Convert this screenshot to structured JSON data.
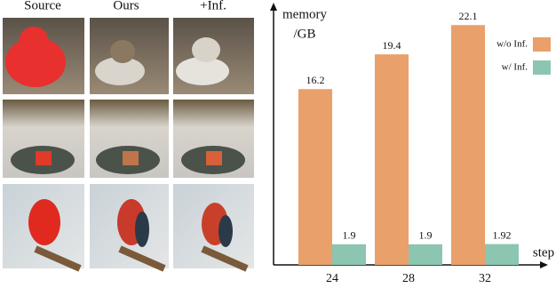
{
  "image_grid": {
    "column_labels": [
      "Source",
      "Ours",
      "+Inf."
    ]
  },
  "chart_data": {
    "type": "bar",
    "y_label_lines": [
      "memory",
      "/GB"
    ],
    "x_label": "step",
    "categories": [
      "24",
      "28",
      "32"
    ],
    "series": [
      {
        "name": "w/o Inf.",
        "color": "#e9a06b",
        "values": [
          16.2,
          19.4,
          22.1
        ]
      },
      {
        "name": "w/ Inf.",
        "color": "#8cc5b0",
        "values": [
          1.9,
          1.9,
          1.92
        ]
      }
    ],
    "ylim": [
      0,
      24
    ],
    "legend": "upper right"
  }
}
